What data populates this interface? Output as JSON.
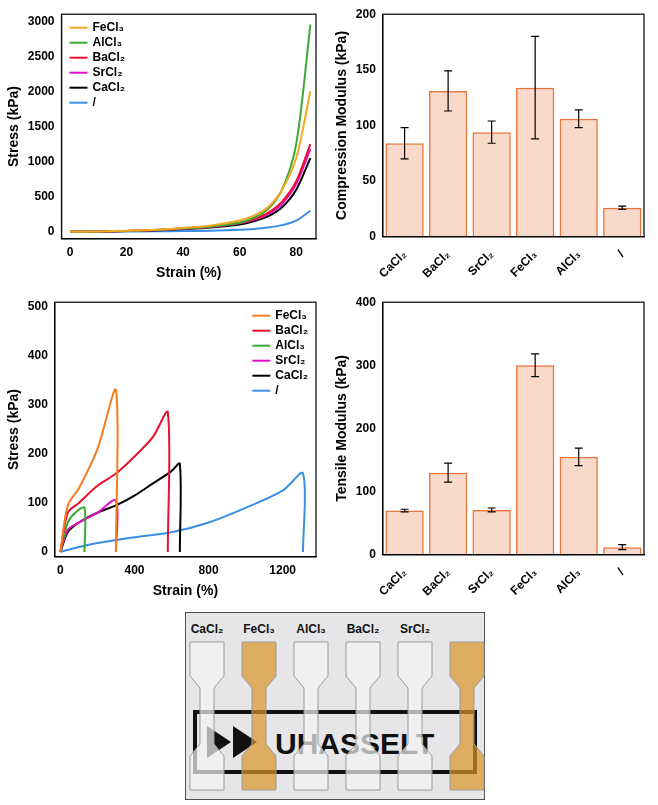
{
  "chart_data": [
    {
      "type": "line",
      "x_label": "Strain (%)",
      "y_label": "Stress (kPa)",
      "xlim": [
        -3,
        87
      ],
      "xticks": [
        0,
        20,
        40,
        60,
        80
      ],
      "ylim": [
        -100,
        3100
      ],
      "yticks": [
        0,
        500,
        1000,
        1500,
        2000,
        2500,
        3000
      ],
      "grid": false,
      "legend": "upper left",
      "x": [
        0,
        10,
        20,
        30,
        40,
        50,
        60,
        65,
        70,
        75,
        80,
        85
      ],
      "series": [
        {
          "name": "FeCl₃",
          "color": "#f5a623",
          "values": [
            0,
            5,
            15,
            30,
            55,
            90,
            160,
            230,
            350,
            600,
            1050,
            2000
          ]
        },
        {
          "name": "AlCl₃",
          "color": "#3aaa35",
          "values": [
            0,
            5,
            12,
            25,
            45,
            75,
            130,
            200,
            320,
            600,
            1250,
            2950
          ]
        },
        {
          "name": "BaCl₂",
          "color": "#e8112d",
          "values": [
            0,
            4,
            12,
            25,
            45,
            75,
            130,
            180,
            270,
            430,
            720,
            1250
          ]
        },
        {
          "name": "SrCl₂",
          "color": "#e60eca",
          "values": [
            0,
            4,
            11,
            23,
            42,
            70,
            120,
            170,
            250,
            400,
            680,
            1180
          ]
        },
        {
          "name": "CaCl₂",
          "color": "#000000",
          "values": [
            0,
            3,
            10,
            20,
            38,
            62,
            105,
            150,
            220,
            350,
            600,
            1050
          ]
        },
        {
          "name": "/",
          "color": "#3a8ee6",
          "values": [
            0,
            1,
            3,
            6,
            10,
            16,
            28,
            40,
            60,
            95,
            160,
            300
          ]
        }
      ]
    },
    {
      "type": "bar",
      "y_label": "Compression Modulus (kPa)",
      "categories": [
        "CaCl₂",
        "BaCl₂",
        "SrCl₂",
        "FeCl₃",
        "AlCl₃",
        "/"
      ],
      "values": [
        84,
        131,
        94,
        134,
        106,
        26
      ],
      "errors": [
        14,
        18,
        10,
        46,
        8,
        1.5
      ],
      "color": "#e8763a",
      "ylim": [
        0,
        200
      ],
      "yticks": [
        0,
        50,
        100,
        150,
        200
      ],
      "grid": false
    },
    {
      "type": "line",
      "x_label": "Strain (%)",
      "y_label": "Stress (kPa)",
      "xlim": [
        -30,
        1380
      ],
      "xticks": [
        0,
        400,
        800,
        1200
      ],
      "ylim": [
        -10,
        510
      ],
      "yticks": [
        0,
        100,
        200,
        300,
        400,
        500
      ],
      "grid": false,
      "legend": "upper right",
      "series": [
        {
          "name": "FeCl₃",
          "color": "#f57c20",
          "x": [
            0,
            40,
            100,
            200,
            300,
            300
          ],
          "values": [
            0,
            95,
            130,
            210,
            330,
            0
          ]
        },
        {
          "name": "BaCl₂",
          "color": "#e8112d",
          "x": [
            0,
            40,
            100,
            200,
            300,
            400,
            500,
            580,
            580
          ],
          "values": [
            0,
            80,
            100,
            135,
            160,
            195,
            235,
            285,
            0
          ]
        },
        {
          "name": "AlCl₃",
          "color": "#3aaa35",
          "x": [
            0,
            40,
            80,
            130,
            130
          ],
          "values": [
            0,
            60,
            80,
            90,
            0
          ]
        },
        {
          "name": "SrCl₂",
          "color": "#e60eca",
          "x": [
            0,
            40,
            100,
            200,
            300,
            300
          ],
          "values": [
            0,
            45,
            60,
            80,
            105,
            0
          ]
        },
        {
          "name": "CaCl₂",
          "color": "#000000",
          "x": [
            0,
            40,
            100,
            200,
            300,
            400,
            500,
            600,
            645,
            645
          ],
          "values": [
            0,
            40,
            60,
            80,
            95,
            115,
            140,
            165,
            180,
            0
          ]
        },
        {
          "name": "/",
          "color": "#3a8ee6",
          "x": [
            0,
            100,
            200,
            400,
            600,
            800,
            1000,
            1200,
            1310,
            1310
          ],
          "values": [
            0,
            10,
            18,
            30,
            40,
            60,
            90,
            125,
            160,
            0
          ]
        }
      ]
    },
    {
      "type": "bar",
      "y_label": "Tensile Modulus (kPa)",
      "categories": [
        "CaCl₂",
        "BaCl₂",
        "SrCl₂",
        "FeCl₃",
        "AlCl₃",
        "/"
      ],
      "values": [
        70,
        130,
        71,
        300,
        155,
        12
      ],
      "errors": [
        2,
        15,
        3,
        18,
        14,
        4
      ],
      "color": "#e8763a",
      "ylim": [
        0,
        400
      ],
      "yticks": [
        0,
        100,
        200,
        300,
        400
      ],
      "grid": false
    }
  ],
  "photo": {
    "samples": [
      {
        "label": "CaCl₂",
        "color": "#f3f3f3"
      },
      {
        "label": "FeCl₃",
        "color": "#d9962a"
      },
      {
        "label": "AlCl₃",
        "color": "#f3f3f3"
      },
      {
        "label": "BaCl₂",
        "color": "#f3f3f3"
      },
      {
        "label": "SrCl₂",
        "color": "#f3f3f3"
      },
      {
        "label": null,
        "color": "#d9962a"
      }
    ],
    "logo_text": "UHASSELT"
  }
}
